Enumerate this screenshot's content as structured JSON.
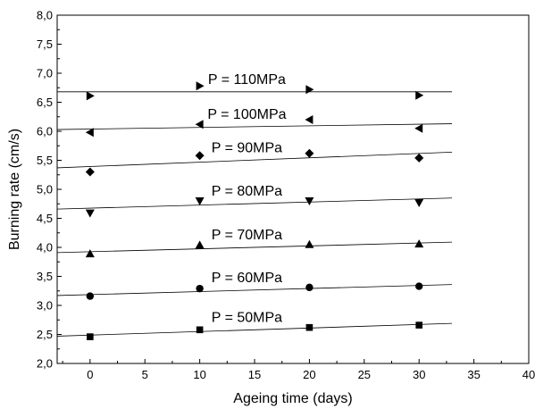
{
  "chart_data": {
    "type": "scatter",
    "title": "",
    "xlabel": "Ageing time (days)",
    "ylabel": "Burning rate (cm/s)",
    "xlim": [
      -3,
      40
    ],
    "ylim": [
      2.0,
      8.0
    ],
    "x_ticks": [
      "0",
      "5",
      "10",
      "15",
      "20",
      "25",
      "30",
      "35",
      "40"
    ],
    "y_ticks": [
      "2,0",
      "2,5",
      "3,0",
      "3,5",
      "4,0",
      "4,5",
      "5,0",
      "5,5",
      "6,0",
      "6,5",
      "7,0",
      "7,5",
      "8,0"
    ],
    "grid": false,
    "legend": "none",
    "fit_range": [
      -3,
      33
    ],
    "x": [
      0,
      10,
      20,
      30
    ],
    "series": [
      {
        "name": "P = 50MPa",
        "marker": "square",
        "values": [
          2.46,
          2.58,
          2.62,
          2.66
        ],
        "fit": [
          2.47,
          2.69
        ]
      },
      {
        "name": "P = 60MPa",
        "marker": "circle",
        "values": [
          3.16,
          3.29,
          3.31,
          3.33
        ],
        "fit": [
          3.17,
          3.36
        ]
      },
      {
        "name": "P = 70MPa",
        "marker": "triangle-up",
        "values": [
          3.89,
          4.04,
          4.05,
          4.06
        ],
        "fit": [
          3.91,
          4.09
        ]
      },
      {
        "name": "P = 80MPa",
        "marker": "triangle-down",
        "values": [
          4.59,
          4.8,
          4.8,
          4.77
        ],
        "fit": [
          4.66,
          4.85
        ]
      },
      {
        "name": "P = 90MPa",
        "marker": "diamond",
        "values": [
          5.3,
          5.58,
          5.62,
          5.54
        ],
        "fit": [
          5.37,
          5.64
        ]
      },
      {
        "name": "P = 100MPa",
        "marker": "triangle-left",
        "values": [
          5.98,
          6.12,
          6.2,
          6.05
        ],
        "fit": [
          6.03,
          6.13
        ]
      },
      {
        "name": "P = 110MPa",
        "marker": "triangle-right",
        "values": [
          6.61,
          6.78,
          6.72,
          6.62
        ],
        "fit": [
          6.68,
          6.68
        ]
      }
    ]
  }
}
